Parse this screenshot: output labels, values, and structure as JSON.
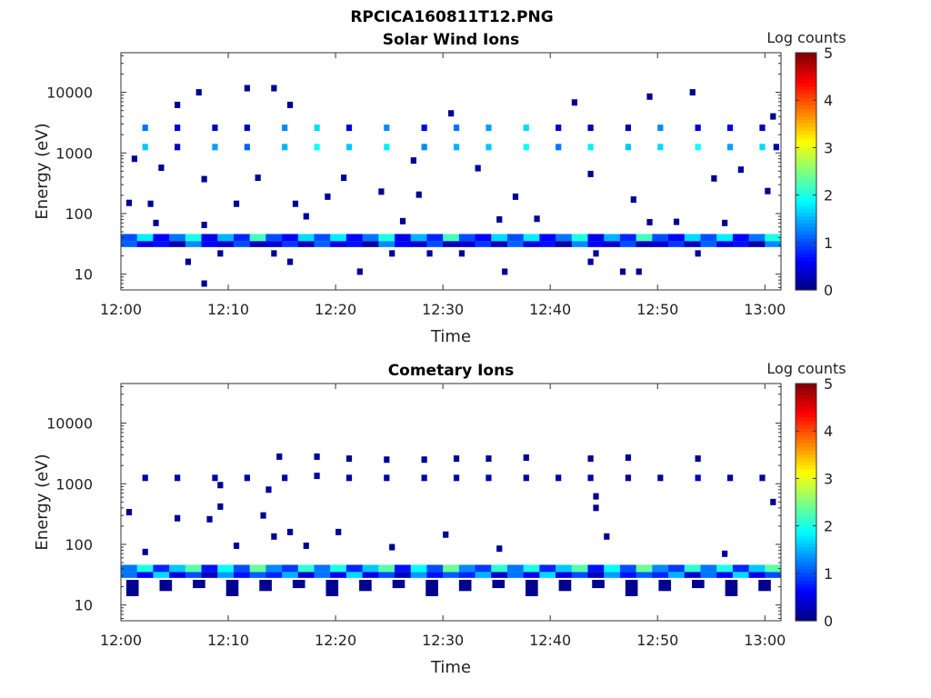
{
  "page_title": "RPCICA160811T12.PNG",
  "colorbar": {
    "label": "Log counts",
    "ticks": [
      "0",
      "1",
      "2",
      "3",
      "4",
      "5"
    ],
    "range": [
      0,
      5
    ],
    "colormap": "jet"
  },
  "chart_data": [
    {
      "type": "heatmap",
      "title": "Solar Wind Ions",
      "xlabel": "Time",
      "ylabel": "Energy (eV)",
      "x_ticks": [
        "12:00",
        "12:10",
        "12:20",
        "12:30",
        "12:40",
        "12:50",
        "13:00"
      ],
      "x_tick_minutes": [
        0,
        10,
        20,
        30,
        40,
        50,
        60
      ],
      "xlim_minutes": [
        0,
        61.5
      ],
      "y_scale": "log",
      "y_ticks": [
        "10",
        "100",
        "1000",
        "10000"
      ],
      "y_tick_values": [
        10,
        100,
        1000,
        10000
      ],
      "ylim": [
        5.5,
        45000
      ],
      "data_gap_minutes": [
        42.5,
        43.5
      ],
      "bands": [
        {
          "energy_range": [
            35,
            46
          ],
          "level_pattern": [
            1.0,
            1.8,
            0.6,
            1.2,
            2.0,
            0.5,
            1.5,
            0.8,
            2.2,
            1.0,
            0.6,
            1.7
          ]
        },
        {
          "energy_range": [
            28,
            35
          ],
          "level_pattern": [
            0.4,
            0.9,
            0.3,
            1.1,
            0.5,
            0.7,
            0.2,
            1.3,
            0.6,
            0.4,
            1.0,
            0.3
          ]
        }
      ],
      "sparse_cells": [
        {
          "t": 2,
          "e": 2600,
          "v": 1.2
        },
        {
          "t": 2,
          "e": 1250,
          "v": 1.6
        },
        {
          "t": 5,
          "e": 2600,
          "v": 0.4
        },
        {
          "t": 5,
          "e": 1250,
          "v": 0.3
        },
        {
          "t": 8.5,
          "e": 2600,
          "v": 0.3
        },
        {
          "t": 8.5,
          "e": 1250,
          "v": 1.4
        },
        {
          "t": 11.5,
          "e": 2600,
          "v": 0.3
        },
        {
          "t": 11.5,
          "e": 1250,
          "v": 1.1
        },
        {
          "t": 15,
          "e": 2600,
          "v": 1.3
        },
        {
          "t": 15,
          "e": 1250,
          "v": 1.5
        },
        {
          "t": 18,
          "e": 2600,
          "v": 1.7
        },
        {
          "t": 18,
          "e": 1250,
          "v": 1.9
        },
        {
          "t": 21,
          "e": 2600,
          "v": 0.4
        },
        {
          "t": 21,
          "e": 1250,
          "v": 1.6
        },
        {
          "t": 24.5,
          "e": 2600,
          "v": 1.3
        },
        {
          "t": 24.5,
          "e": 1250,
          "v": 1.8
        },
        {
          "t": 28,
          "e": 2600,
          "v": 0.5
        },
        {
          "t": 28,
          "e": 1250,
          "v": 1.3
        },
        {
          "t": 31,
          "e": 2600,
          "v": 1.2
        },
        {
          "t": 31,
          "e": 1250,
          "v": 1.5
        },
        {
          "t": 34,
          "e": 2600,
          "v": 1.4
        },
        {
          "t": 34,
          "e": 1250,
          "v": 1.6
        },
        {
          "t": 37.5,
          "e": 2600,
          "v": 1.7
        },
        {
          "t": 37.5,
          "e": 1250,
          "v": 1.9
        },
        {
          "t": 40.5,
          "e": 2600,
          "v": 0.4
        },
        {
          "t": 40.5,
          "e": 1250,
          "v": 1.2
        },
        {
          "t": 43.5,
          "e": 2600,
          "v": 0.3
        },
        {
          "t": 43.5,
          "e": 1250,
          "v": 1.8
        },
        {
          "t": 47,
          "e": 2600,
          "v": 0.2
        },
        {
          "t": 47,
          "e": 1250,
          "v": 1.6
        },
        {
          "t": 50,
          "e": 2600,
          "v": 1.3
        },
        {
          "t": 50,
          "e": 1250,
          "v": 1.7
        },
        {
          "t": 53.5,
          "e": 2600,
          "v": 0.4
        },
        {
          "t": 53.5,
          "e": 1250,
          "v": 1.9
        },
        {
          "t": 56.5,
          "e": 2600,
          "v": 0.5
        },
        {
          "t": 56.5,
          "e": 1250,
          "v": 1.4
        },
        {
          "t": 59.5,
          "e": 2600,
          "v": 0.3
        },
        {
          "t": 59.5,
          "e": 1250,
          "v": 1.7
        },
        {
          "t": 60.8,
          "e": 1250,
          "v": 0.2
        },
        {
          "t": 7,
          "e": 10000,
          "v": 0.1
        },
        {
          "t": 11.5,
          "e": 11700,
          "v": 0.1
        },
        {
          "t": 14,
          "e": 11700,
          "v": 0.1
        },
        {
          "t": 5,
          "e": 6200,
          "v": 0.1
        },
        {
          "t": 15.5,
          "e": 6200,
          "v": 0.1
        },
        {
          "t": 42,
          "e": 6800,
          "v": 0.1
        },
        {
          "t": 49,
          "e": 8500,
          "v": 0.1
        },
        {
          "t": 53,
          "e": 10000,
          "v": 0.1
        },
        {
          "t": 30.5,
          "e": 4500,
          "v": 0.1
        },
        {
          "t": 60.5,
          "e": 4000,
          "v": 0.1
        },
        {
          "t": 3.5,
          "e": 570,
          "v": 0.1
        },
        {
          "t": 1,
          "e": 800,
          "v": 0.1
        },
        {
          "t": 7.5,
          "e": 370,
          "v": 0.1
        },
        {
          "t": 12.5,
          "e": 390,
          "v": 0.1
        },
        {
          "t": 20.5,
          "e": 390,
          "v": 0.1
        },
        {
          "t": 33,
          "e": 560,
          "v": 0.1
        },
        {
          "t": 43.5,
          "e": 450,
          "v": 0.1
        },
        {
          "t": 55,
          "e": 380,
          "v": 0.1
        },
        {
          "t": 57.5,
          "e": 530,
          "v": 0.1
        },
        {
          "t": 27,
          "e": 750,
          "v": 0.1
        },
        {
          "t": 0.5,
          "e": 150,
          "v": 0.1
        },
        {
          "t": 2.5,
          "e": 145,
          "v": 0.1
        },
        {
          "t": 10.5,
          "e": 145,
          "v": 0.1
        },
        {
          "t": 16,
          "e": 145,
          "v": 0.1
        },
        {
          "t": 19,
          "e": 190,
          "v": 0.1
        },
        {
          "t": 24,
          "e": 230,
          "v": 0.1
        },
        {
          "t": 27.5,
          "e": 205,
          "v": 0.1
        },
        {
          "t": 36.5,
          "e": 190,
          "v": 0.1
        },
        {
          "t": 47.5,
          "e": 170,
          "v": 0.1
        },
        {
          "t": 60,
          "e": 235,
          "v": 0.1
        },
        {
          "t": 3,
          "e": 70,
          "v": 0.1
        },
        {
          "t": 7.5,
          "e": 65,
          "v": 0.1
        },
        {
          "t": 17,
          "e": 90,
          "v": 0.1
        },
        {
          "t": 26,
          "e": 75,
          "v": 0.1
        },
        {
          "t": 35,
          "e": 80,
          "v": 0.1
        },
        {
          "t": 38.5,
          "e": 82,
          "v": 0.1
        },
        {
          "t": 49,
          "e": 72,
          "v": 0.1
        },
        {
          "t": 51.5,
          "e": 73,
          "v": 0.1
        },
        {
          "t": 56,
          "e": 70,
          "v": 0.1
        },
        {
          "t": 6,
          "e": 16,
          "v": 0.1
        },
        {
          "t": 9,
          "e": 22,
          "v": 0.1
        },
        {
          "t": 14,
          "e": 22,
          "v": 0.1
        },
        {
          "t": 15.5,
          "e": 16,
          "v": 0.1
        },
        {
          "t": 22,
          "e": 11,
          "v": 0.1
        },
        {
          "t": 25,
          "e": 22,
          "v": 0.1
        },
        {
          "t": 28.5,
          "e": 22,
          "v": 0.1
        },
        {
          "t": 31.5,
          "e": 22,
          "v": 0.1
        },
        {
          "t": 35.5,
          "e": 11,
          "v": 0.1
        },
        {
          "t": 43.5,
          "e": 16,
          "v": 0.1
        },
        {
          "t": 44,
          "e": 22,
          "v": 0.1
        },
        {
          "t": 46.5,
          "e": 11,
          "v": 0.1
        },
        {
          "t": 48,
          "e": 11,
          "v": 0.1
        },
        {
          "t": 53.5,
          "e": 22,
          "v": 0.1
        },
        {
          "t": 7.5,
          "e": 7,
          "v": 0.1
        }
      ]
    },
    {
      "type": "heatmap",
      "title": "Cometary Ions",
      "xlabel": "Time",
      "ylabel": "Energy (eV)",
      "x_ticks": [
        "12:00",
        "12:10",
        "12:20",
        "12:30",
        "12:40",
        "12:50",
        "13:00"
      ],
      "x_tick_minutes": [
        0,
        10,
        20,
        30,
        40,
        50,
        60
      ],
      "xlim_minutes": [
        0,
        61.5
      ],
      "y_scale": "log",
      "y_ticks": [
        "10",
        "100",
        "1000",
        "10000"
      ],
      "y_tick_values": [
        10,
        100,
        1000,
        10000
      ],
      "ylim": [
        5.5,
        45000
      ],
      "data_gap_minutes": [],
      "bands": [
        {
          "energy_range": [
            35,
            46
          ],
          "level_pattern": [
            1.2,
            2.0,
            0.8,
            1.6,
            2.3,
            0.7,
            1.9,
            1.0,
            2.4,
            1.3,
            0.9,
            2.1
          ]
        },
        {
          "energy_range": [
            28,
            35
          ],
          "level_pattern": [
            0.8,
            1.5,
            0.4,
            1.2,
            0.6,
            1.7,
            0.5,
            1.0,
            0.3,
            1.4,
            0.7,
            1.1
          ]
        }
      ],
      "sparse_cells": [
        {
          "t": 2,
          "e": 1250,
          "v": 0.2
        },
        {
          "t": 5,
          "e": 1250,
          "v": 0.2
        },
        {
          "t": 8.5,
          "e": 1250,
          "v": 0.2
        },
        {
          "t": 11.5,
          "e": 1250,
          "v": 0.2
        },
        {
          "t": 15,
          "e": 1250,
          "v": 0.2
        },
        {
          "t": 18,
          "e": 1350,
          "v": 0.2
        },
        {
          "t": 18,
          "e": 2800,
          "v": 0.1
        },
        {
          "t": 21,
          "e": 1250,
          "v": 0.2
        },
        {
          "t": 24.5,
          "e": 1250,
          "v": 0.2
        },
        {
          "t": 28,
          "e": 1250,
          "v": 0.2
        },
        {
          "t": 31,
          "e": 1250,
          "v": 0.2
        },
        {
          "t": 34,
          "e": 1250,
          "v": 0.2
        },
        {
          "t": 37.5,
          "e": 1250,
          "v": 0.2
        },
        {
          "t": 40.5,
          "e": 1250,
          "v": 0.2
        },
        {
          "t": 43.5,
          "e": 1250,
          "v": 0.2
        },
        {
          "t": 47,
          "e": 1250,
          "v": 0.2
        },
        {
          "t": 50,
          "e": 1250,
          "v": 0.2
        },
        {
          "t": 53.5,
          "e": 1250,
          "v": 0.3
        },
        {
          "t": 56.5,
          "e": 1250,
          "v": 0.2
        },
        {
          "t": 59.5,
          "e": 1250,
          "v": 0.2
        },
        {
          "t": 14.5,
          "e": 2800,
          "v": 0.1
        },
        {
          "t": 21,
          "e": 2600,
          "v": 0.1
        },
        {
          "t": 24.5,
          "e": 2500,
          "v": 0.1
        },
        {
          "t": 28,
          "e": 2500,
          "v": 0.1
        },
        {
          "t": 31,
          "e": 2600,
          "v": 0.1
        },
        {
          "t": 34,
          "e": 2600,
          "v": 0.1
        },
        {
          "t": 37.5,
          "e": 2700,
          "v": 0.1
        },
        {
          "t": 43.5,
          "e": 2600,
          "v": 0.1
        },
        {
          "t": 47,
          "e": 2700,
          "v": 0.1
        },
        {
          "t": 53.5,
          "e": 2600,
          "v": 0.1
        },
        {
          "t": 0.5,
          "e": 340,
          "v": 0.1
        },
        {
          "t": 5,
          "e": 270,
          "v": 0.1
        },
        {
          "t": 8,
          "e": 260,
          "v": 0.1
        },
        {
          "t": 9,
          "e": 420,
          "v": 0.1
        },
        {
          "t": 13,
          "e": 300,
          "v": 0.1
        },
        {
          "t": 13.5,
          "e": 800,
          "v": 0.1
        },
        {
          "t": 9,
          "e": 950,
          "v": 0.1
        },
        {
          "t": 44,
          "e": 620,
          "v": 0.1
        },
        {
          "t": 44,
          "e": 400,
          "v": 0.1
        },
        {
          "t": 60.5,
          "e": 500,
          "v": 0.1
        },
        {
          "t": 2,
          "e": 75,
          "v": 0.1
        },
        {
          "t": 10.5,
          "e": 95,
          "v": 0.1
        },
        {
          "t": 14,
          "e": 135,
          "v": 0.1
        },
        {
          "t": 15.5,
          "e": 160,
          "v": 0.1
        },
        {
          "t": 17,
          "e": 95,
          "v": 0.1
        },
        {
          "t": 20,
          "e": 160,
          "v": 0.1
        },
        {
          "t": 25,
          "e": 90,
          "v": 0.1
        },
        {
          "t": 30,
          "e": 145,
          "v": 0.1
        },
        {
          "t": 35,
          "e": 85,
          "v": 0.1
        },
        {
          "t": 45,
          "e": 135,
          "v": 0.1
        },
        {
          "t": 56,
          "e": 70,
          "v": 0.1
        }
      ],
      "low_energy_tail": true
    }
  ]
}
